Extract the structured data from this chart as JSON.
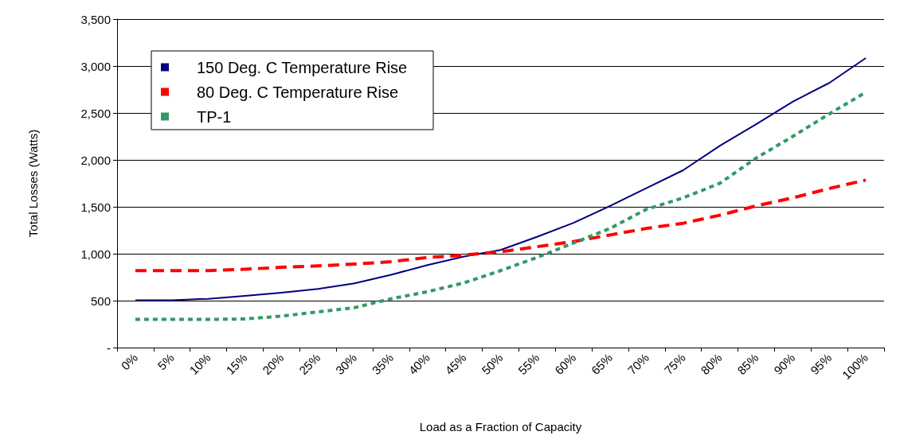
{
  "chart_data": {
    "type": "line",
    "xlabel": "Load as a Fraction of Capacity",
    "ylabel": "Total Losses (Watts)",
    "categories": [
      "0%",
      "5%",
      "10%",
      "15%",
      "20%",
      "25%",
      "30%",
      "35%",
      "40%",
      "45%",
      "50%",
      "55%",
      "60%",
      "65%",
      "70%",
      "75%",
      "80%",
      "85%",
      "90%",
      "95%",
      "100%"
    ],
    "series": [
      {
        "name": "150 Deg. C Temperature Rise",
        "color": "#000080",
        "line_style": "solid",
        "values": [
          505,
          505,
          520,
          550,
          585,
          625,
          685,
          775,
          880,
          970,
          1040,
          1180,
          1330,
          1510,
          1700,
          1890,
          2150,
          2380,
          2620,
          2820,
          3085
        ]
      },
      {
        "name": "80 Deg. C Temperature Rise",
        "color": "#ff0000",
        "line_style": "dashed",
        "values": [
          820,
          820,
          820,
          835,
          855,
          870,
          890,
          915,
          960,
          985,
          1020,
          1075,
          1130,
          1200,
          1270,
          1325,
          1410,
          1510,
          1595,
          1695,
          1785
        ]
      },
      {
        "name": "TP-1",
        "color": "#339966",
        "line_style": "dotted",
        "values": [
          300,
          300,
          300,
          305,
          335,
          380,
          425,
          520,
          595,
          690,
          820,
          960,
          1115,
          1270,
          1475,
          1595,
          1750,
          2020,
          2250,
          2490,
          2720
        ]
      }
    ],
    "ylim": [
      0,
      3500
    ],
    "yticks": [
      {
        "value": 0,
        "label": "-"
      },
      {
        "value": 500,
        "label": "500"
      },
      {
        "value": 1000,
        "label": "1,000"
      },
      {
        "value": 1500,
        "label": "1,500"
      },
      {
        "value": 2000,
        "label": "2,000"
      },
      {
        "value": 2500,
        "label": "2,500"
      },
      {
        "value": 3000,
        "label": "3,000"
      },
      {
        "value": 3500,
        "label": "3,500"
      }
    ],
    "grid": "y",
    "legend": "top left",
    "marker": "none"
  }
}
